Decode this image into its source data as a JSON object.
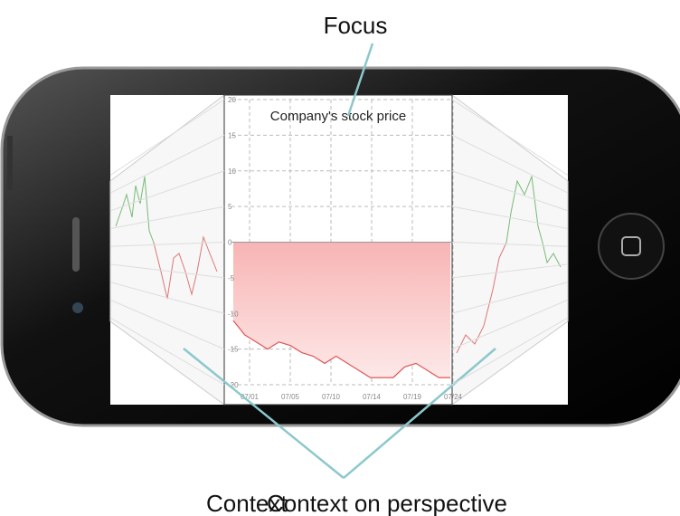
{
  "labels": {
    "focus": "Focus",
    "context": "Context",
    "context_perspective": "Context on perspective"
  },
  "chart": {
    "title": "Company's stock price",
    "yticks": [
      20,
      15,
      10,
      5,
      0,
      -5,
      -10,
      -15,
      -20
    ],
    "ylim": [
      -20,
      20
    ],
    "xticks": [
      "07/01",
      "07/05",
      "07/10",
      "07/14",
      "07/19",
      "07/24"
    ],
    "values": [
      -11,
      -13,
      -14,
      -15,
      -14,
      -14.5,
      -15.5,
      -16,
      -17,
      -16,
      -17,
      -18,
      -19,
      -19,
      -19,
      -17.5,
      -17,
      -18,
      -19,
      -19
    ]
  }
}
